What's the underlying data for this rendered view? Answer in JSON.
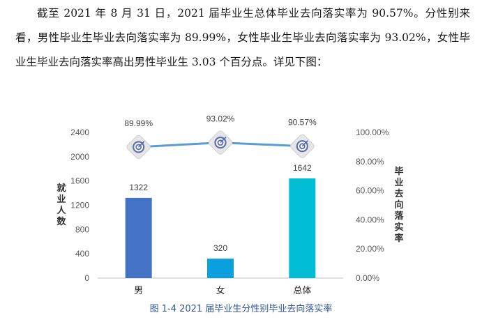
{
  "paragraph": "截至 2021 年 8 月 31 日，2021 届毕业生总体毕业去向落实率为 90.57%。分性别来看，男性毕业生毕业去向落实率为 89.99%，女性毕业生毕业去向落实率为 93.02%，女性毕业生毕业去向落实率高出男性毕业生 3.03 个百分点。详见下图：",
  "caption": "图 1-4 2021 届毕业生分性别毕业去向落实率",
  "chart_data": {
    "type": "bar",
    "categories": [
      "男",
      "女",
      "总体"
    ],
    "series": [
      {
        "kind": "bar",
        "axis": "left",
        "values": [
          1322,
          320,
          1642
        ],
        "labels": [
          "1322",
          "320",
          "1642"
        ],
        "colors": [
          "#4472c4",
          "#0b9fe0",
          "#00bcd4"
        ]
      },
      {
        "kind": "line",
        "axis": "right",
        "values": [
          89.99,
          93.02,
          90.57
        ],
        "labels": [
          "89.99%",
          "93.02%",
          "90.57%"
        ],
        "color": "#5b9bd5",
        "marker": "target-icon"
      }
    ],
    "ylabel": "就业人数",
    "y2label": "毕业去向落实率",
    "ylim": [
      0,
      2400
    ],
    "yticks": [
      "0",
      "400",
      "800",
      "1200",
      "1600",
      "2000",
      "2400"
    ],
    "y2lim": [
      0,
      100
    ],
    "y2ticks": [
      "0.00%",
      "20.00%",
      "40.00%",
      "60.00%",
      "80.00%",
      "100.00%"
    ],
    "grid": false
  }
}
